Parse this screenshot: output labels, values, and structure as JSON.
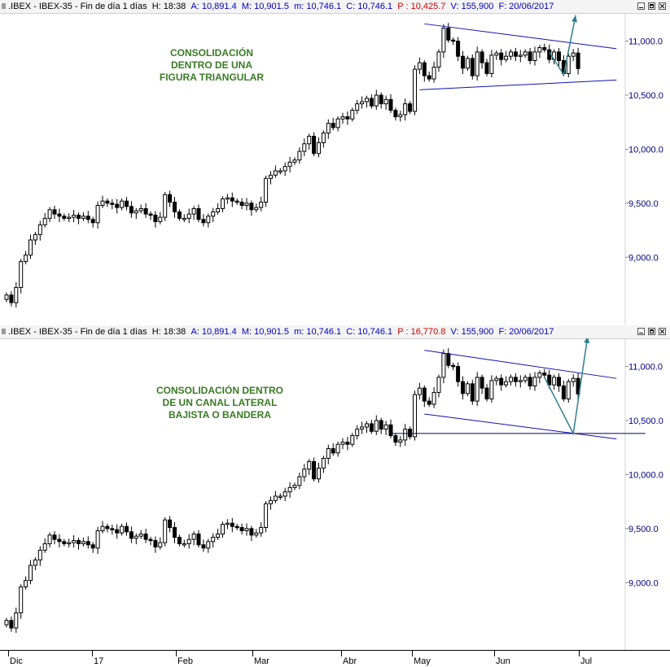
{
  "panels": [
    {
      "header": {
        "symbol": ".IBEX - IBEX-35 - Fin de día 1 días",
        "H": "H: 18:38",
        "A": "A: 10,891.4",
        "M": "M: 10,901.5",
        "m": "m: 10,746.1",
        "C": "C: 10,746.1",
        "P": "P : 10,425.7",
        "V": "V: 155,900",
        "F": "F: 20/06/2017"
      },
      "annotation": "CONSOLIDACIÓN\nDENTRO DE UNA\nFIGURA TRIANGULAR"
    },
    {
      "header": {
        "symbol": ".IBEX - IBEX-35 - Fin de día 1 días",
        "H": "H: 18:38",
        "A": "A: 10,891.4",
        "M": "M: 10,901.5",
        "m": "m: 10,746.1",
        "C": "C: 10,746.1",
        "P": "P : 16,770.8",
        "V": "V: 155,900",
        "F": "F: 20/06/2017"
      },
      "annotation": "CONSOLIDACIÓN DENTRO\nDE UN CANAL LATERAL\nBAJISTA O BANDERA"
    }
  ],
  "x_axis": {
    "months": [
      "Dic",
      "17",
      "Feb",
      "Mar",
      "Abr",
      "May",
      "Jun",
      "Jul"
    ]
  },
  "colors": {
    "axis_label": "#000080",
    "trendline": "#1010b0",
    "projection": "#2f7f8f",
    "annotation": "#3a7a25"
  },
  "chart_data": [
    {
      "type": "candlestick",
      "title": ".IBEX - IBEX-35 - Fin de día 1 días",
      "y_ticks": [
        9000,
        9500,
        10000,
        10500,
        11000
      ],
      "y_tick_labels": [
        "9,000.0",
        "9,500.0",
        "10,000.0",
        "10,500.0",
        "11,000.0"
      ],
      "ylim": [
        8460,
        11200
      ],
      "x_categories": [
        "Dic",
        "17",
        "Feb",
        "Mar",
        "Abr",
        "May",
        "Jun",
        "Jul"
      ],
      "closes": [
        8650,
        8580,
        8720,
        8960,
        9020,
        9160,
        9210,
        9300,
        9360,
        9440,
        9400,
        9380,
        9360,
        9370,
        9390,
        9360,
        9380,
        9350,
        9320,
        9480,
        9520,
        9500,
        9490,
        9460,
        9520,
        9470,
        9410,
        9430,
        9450,
        9400,
        9390,
        9330,
        9370,
        9580,
        9510,
        9420,
        9360,
        9360,
        9400,
        9450,
        9350,
        9320,
        9380,
        9420,
        9450,
        9540,
        9550,
        9520,
        9510,
        9480,
        9500,
        9440,
        9460,
        9510,
        9730,
        9760,
        9800,
        9800,
        9840,
        9880,
        9900,
        9980,
        10050,
        10120,
        9960,
        10060,
        10150,
        10240,
        10200,
        10280,
        10300,
        10280,
        10360,
        10420,
        10440,
        10470,
        10400,
        10500,
        10420,
        10460,
        10360,
        10300,
        10320,
        10420,
        10350,
        10740,
        10800,
        10680,
        10650,
        10760,
        10900,
        11120,
        11010,
        11000,
        10860,
        10750,
        10840,
        10680,
        10900,
        10800,
        10700,
        10870,
        10890,
        10830,
        10860,
        10900,
        10860,
        10870,
        10900,
        10820,
        10900,
        10940,
        10920,
        10830,
        10900,
        10820,
        10700,
        10860,
        10890,
        10746
      ],
      "annotations": [
        "CONSOLIDACIÓN DENTRO DE UNA FIGURA TRIANGULAR"
      ]
    },
    {
      "type": "candlestick",
      "title": ".IBEX - IBEX-35 - Fin de día 1 días",
      "y_ticks": [
        9000,
        9500,
        10000,
        10500,
        11000
      ],
      "y_tick_labels": [
        "9,000.0",
        "9,500.0",
        "10,000.0",
        "10,500.0",
        "11,000.0"
      ],
      "ylim": [
        8460,
        11200
      ],
      "x_categories": [
        "Dic",
        "17",
        "Feb",
        "Mar",
        "Abr",
        "May",
        "Jun",
        "Jul"
      ],
      "closes": [
        8650,
        8580,
        8720,
        8960,
        9020,
        9160,
        9210,
        9300,
        9360,
        9440,
        9400,
        9380,
        9360,
        9370,
        9390,
        9360,
        9380,
        9350,
        9320,
        9480,
        9520,
        9500,
        9490,
        9460,
        9520,
        9470,
        9410,
        9430,
        9450,
        9400,
        9390,
        9330,
        9370,
        9580,
        9510,
        9420,
        9360,
        9360,
        9400,
        9450,
        9350,
        9320,
        9380,
        9420,
        9450,
        9540,
        9550,
        9520,
        9510,
        9480,
        9500,
        9440,
        9460,
        9510,
        9730,
        9760,
        9800,
        9800,
        9840,
        9880,
        9900,
        9980,
        10050,
        10120,
        9960,
        10060,
        10150,
        10240,
        10200,
        10280,
        10300,
        10280,
        10360,
        10420,
        10440,
        10470,
        10400,
        10500,
        10420,
        10460,
        10360,
        10300,
        10320,
        10420,
        10350,
        10740,
        10800,
        10680,
        10650,
        10760,
        10900,
        11120,
        11010,
        11000,
        10860,
        10750,
        10840,
        10680,
        10900,
        10800,
        10700,
        10870,
        10890,
        10830,
        10860,
        10900,
        10860,
        10870,
        10900,
        10820,
        10900,
        10940,
        10920,
        10830,
        10900,
        10820,
        10700,
        10860,
        10890,
        10746
      ],
      "annotations": [
        "CONSOLIDACIÓN DENTRO DE UN CANAL LATERAL BAJISTA O BANDERA"
      ]
    }
  ]
}
